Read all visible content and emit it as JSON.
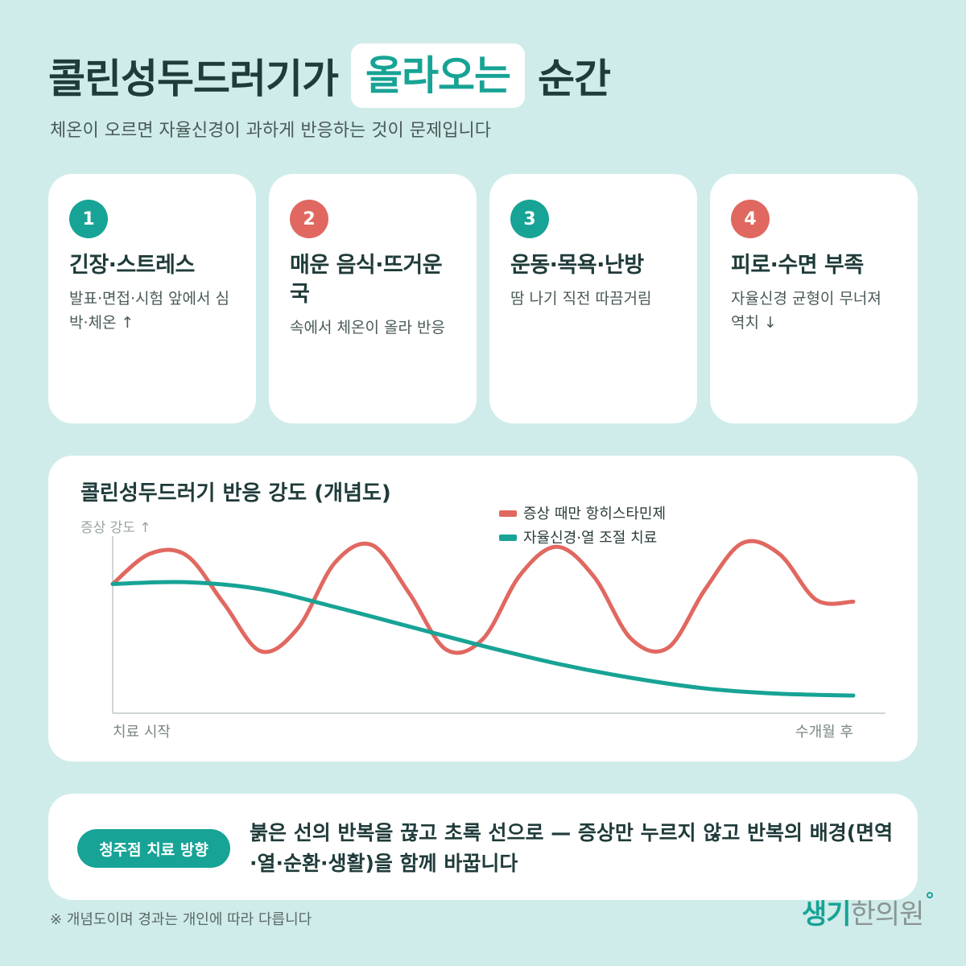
{
  "header": {
    "title_before": "콜린성두드러기가",
    "title_highlight": "올라오는",
    "title_after": "순간",
    "subtitle": "체온이 오르면 자율신경이 과하게 반응하는 것이 문제입니다"
  },
  "triggers": [
    {
      "number": "1",
      "title": "긴장·스트레스",
      "desc": "발표·면접·시험 앞에서 심박·체온 ↑",
      "color": "#17a395"
    },
    {
      "number": "2",
      "title": "매운 음식·뜨거운 국",
      "desc": "속에서 체온이 올라 반응",
      "color": "#e06860"
    },
    {
      "number": "3",
      "title": "운동·목욕·난방",
      "desc": "땀 나기 직전 따끔거림",
      "color": "#17a395"
    },
    {
      "number": "4",
      "title": "피로·수면 부족",
      "desc": "자율신경 균형이 무너져 역치 ↓",
      "color": "#e06860"
    }
  ],
  "chart_data": {
    "type": "line",
    "title": "콜린성두드러기 반응 강도 (개념도)",
    "ylabel": "증상 강도 ↑",
    "x_start_label": "치료 시작",
    "x_end_label": "수개월 후",
    "grid": false,
    "legend_position": "top-right",
    "series": [
      {
        "name": "증상 때만 항히스타민제",
        "color": "#e06860",
        "x": [
          0,
          0.05,
          0.1,
          0.15,
          0.2,
          0.25,
          0.3,
          0.35,
          0.4,
          0.45,
          0.5,
          0.55,
          0.6,
          0.65,
          0.7,
          0.75,
          0.8,
          0.85,
          0.9,
          0.95,
          1
        ],
        "values": [
          0.73,
          0.9,
          0.89,
          0.62,
          0.35,
          0.48,
          0.85,
          0.95,
          0.68,
          0.36,
          0.42,
          0.78,
          0.94,
          0.77,
          0.42,
          0.37,
          0.7,
          0.96,
          0.9,
          0.64,
          0.63
        ]
      },
      {
        "name": "자율신경·열 조절 치료",
        "color": "#17a395",
        "x": [
          0,
          0.1,
          0.2,
          0.3,
          0.4,
          0.5,
          0.6,
          0.7,
          0.8,
          0.9,
          1
        ],
        "values": [
          0.73,
          0.74,
          0.7,
          0.6,
          0.49,
          0.38,
          0.28,
          0.2,
          0.14,
          0.11,
          0.1
        ]
      }
    ]
  },
  "bottom": {
    "label": "청주점 치료 방향",
    "text": "붉은 선의 반복을 끊고 초록 선으로 — 증상만 누르지 않고 반복의 배경(면역·열·순환·생활)을 함께 바꿉니다"
  },
  "footnote": "※ 개념도이며 경과는 개인에 따라 다릅니다",
  "logo": {
    "part1": "생기",
    "part2": "한의원"
  }
}
